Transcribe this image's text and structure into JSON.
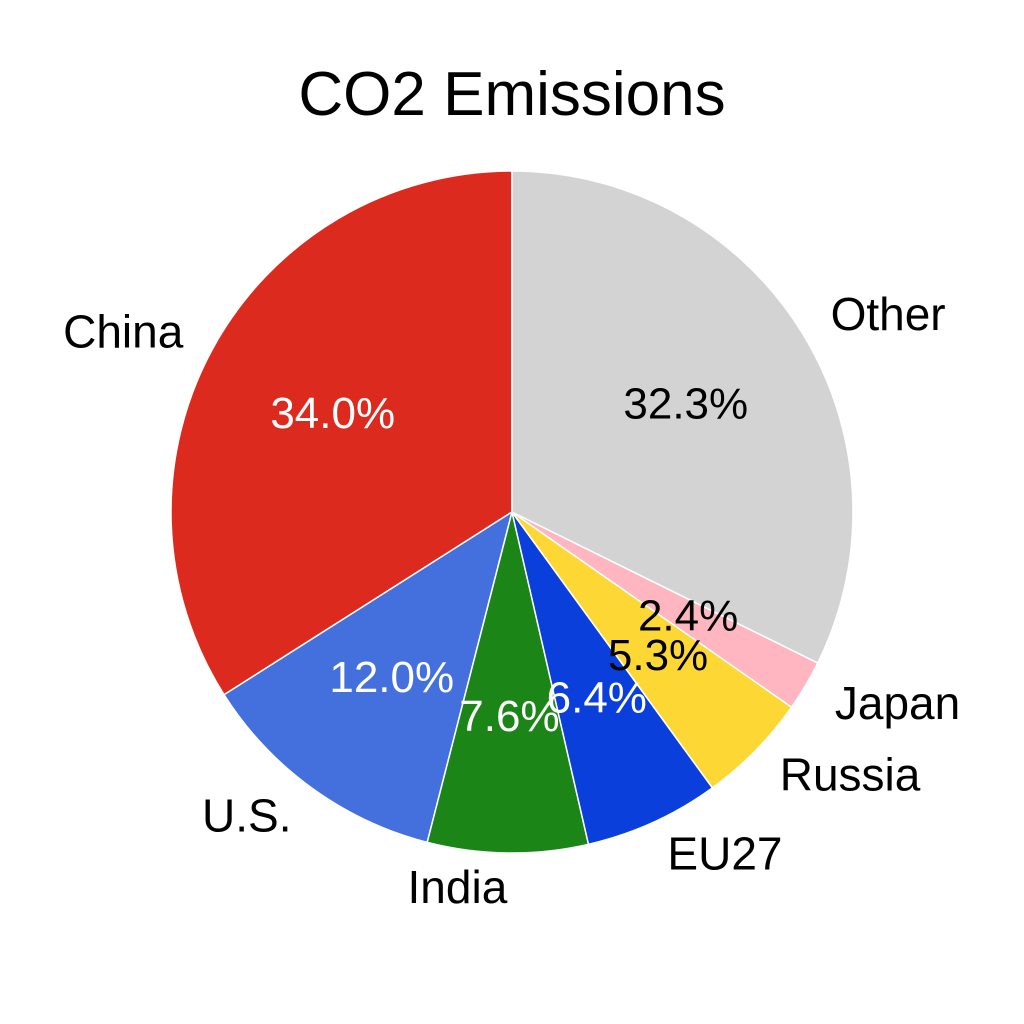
{
  "chart_data": {
    "type": "pie",
    "title": "CO2 Emissions",
    "start_angle_deg": 90,
    "direction": "counterclockwise",
    "slices": [
      {
        "label": "China",
        "value": 34.0,
        "pct_label": "34.0%",
        "color": "#DC2A1F",
        "pct_color": "#ffffff"
      },
      {
        "label": "U.S.",
        "value": 12.0,
        "pct_label": "12.0%",
        "color": "#4470DE",
        "pct_color": "#ffffff"
      },
      {
        "label": "India",
        "value": 7.6,
        "pct_label": "7.6%",
        "color": "#1C8518",
        "pct_color": "#ffffff"
      },
      {
        "label": "EU27",
        "value": 6.4,
        "pct_label": "6.4%",
        "color": "#0B3FDC",
        "pct_color": "#ffffff"
      },
      {
        "label": "Russia",
        "value": 5.3,
        "pct_label": "5.3%",
        "color": "#FDD835",
        "pct_color": "#000000"
      },
      {
        "label": "Japan",
        "value": 2.4,
        "pct_label": "2.4%",
        "color": "#FFB6C1",
        "pct_color": "#000000"
      },
      {
        "label": "Other",
        "value": 32.3,
        "pct_label": "32.3%",
        "color": "#D3D3D3",
        "pct_color": "#000000"
      }
    ],
    "legend": "none"
  }
}
